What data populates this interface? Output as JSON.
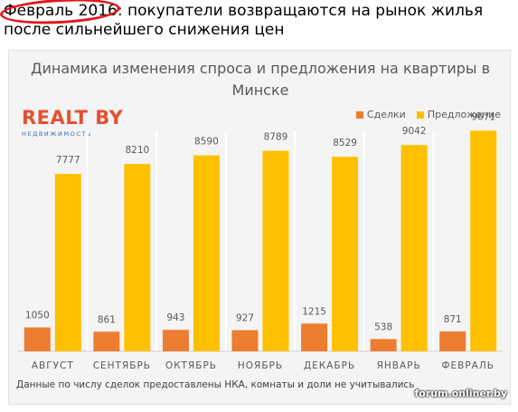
{
  "headline": {
    "highlight": "Февраль 2016",
    "rest": ": покупатели возвращаются на рынок жилья после сильнейшего снижения цен"
  },
  "logo": {
    "name": "REALT BY",
    "subtitle": "НЕДВИЖИМОСТЬ"
  },
  "colors": {
    "deals": "#ed7d31",
    "offers": "#ffc000",
    "highlight_ring": "#e3161b"
  },
  "chart_data": {
    "type": "bar",
    "title": "Динамика изменения спроса и предложения на квартиры в Минске",
    "categories": [
      "АВГУСТ",
      "СЕНТЯБРЬ",
      "ОКТЯБРЬ",
      "НОЯБРЬ",
      "ДЕКАБРЬ",
      "ЯНВАРЬ",
      "ФЕВРАЛЬ"
    ],
    "series": [
      {
        "name": "Сделки",
        "values": [
          1050,
          861,
          943,
          927,
          1215,
          538,
          871
        ]
      },
      {
        "name": "Предложение",
        "values": [
          7777,
          8210,
          8590,
          8789,
          8529,
          9042,
          9671
        ]
      }
    ],
    "legend_position": "top-right",
    "grid": false,
    "ylim": [
      0,
      10000
    ]
  },
  "footnote": "Данные по числу сделок предоставлены НКА, комнаты и доли не учитывались",
  "watermark": "forum.onliner.by"
}
